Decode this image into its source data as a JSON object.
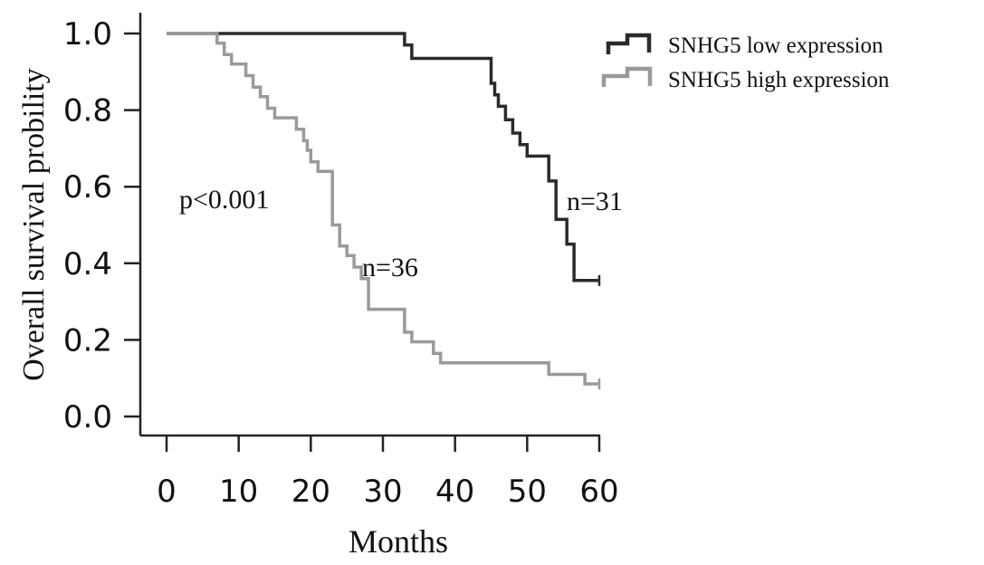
{
  "chart_data": {
    "type": "line",
    "xlabel": "Months",
    "ylabel": "Overall survival probility",
    "xlim": [
      0,
      60
    ],
    "ylim": [
      0,
      1
    ],
    "x_ticks": [
      "0",
      "10",
      "20",
      "30",
      "40",
      "50",
      "60"
    ],
    "y_ticks": [
      "0.0",
      "0.2",
      "0.4",
      "0.6",
      "0.8",
      "1.0"
    ],
    "grid": false,
    "legend_position": "top-right",
    "annotations": {
      "p_value": "p<0.001",
      "n_low": "n=31",
      "n_high": "n=36"
    },
    "series": [
      {
        "name": "SNHG5 low expression",
        "color": "#2b2b2b",
        "step_points": [
          [
            0,
            1.0
          ],
          [
            33,
            1.0
          ],
          [
            33,
            0.97
          ],
          [
            34,
            0.97
          ],
          [
            34,
            0.935
          ],
          [
            45,
            0.935
          ],
          [
            45,
            0.87
          ],
          [
            45.5,
            0.87
          ],
          [
            45.5,
            0.84
          ],
          [
            46,
            0.84
          ],
          [
            46,
            0.81
          ],
          [
            47,
            0.81
          ],
          [
            47,
            0.775
          ],
          [
            48,
            0.775
          ],
          [
            48,
            0.74
          ],
          [
            49,
            0.74
          ],
          [
            49,
            0.71
          ],
          [
            50,
            0.71
          ],
          [
            50,
            0.68
          ],
          [
            53,
            0.68
          ],
          [
            53,
            0.615
          ],
          [
            54,
            0.615
          ],
          [
            54,
            0.515
          ],
          [
            55.5,
            0.515
          ],
          [
            55.5,
            0.45
          ],
          [
            56.5,
            0.45
          ],
          [
            56.5,
            0.355
          ],
          [
            60,
            0.355
          ]
        ],
        "censor": [
          [
            60,
            0.355
          ]
        ]
      },
      {
        "name": "SNHG5 high expression",
        "color": "#9a9a9a",
        "step_points": [
          [
            0,
            1.0
          ],
          [
            7,
            1.0
          ],
          [
            7,
            0.975
          ],
          [
            8,
            0.975
          ],
          [
            8,
            0.945
          ],
          [
            9,
            0.945
          ],
          [
            9,
            0.92
          ],
          [
            11,
            0.92
          ],
          [
            11,
            0.89
          ],
          [
            12,
            0.89
          ],
          [
            12,
            0.86
          ],
          [
            13,
            0.86
          ],
          [
            13,
            0.835
          ],
          [
            14,
            0.835
          ],
          [
            14,
            0.805
          ],
          [
            15,
            0.805
          ],
          [
            15,
            0.78
          ],
          [
            18,
            0.78
          ],
          [
            18,
            0.75
          ],
          [
            19,
            0.75
          ],
          [
            19,
            0.72
          ],
          [
            19.5,
            0.72
          ],
          [
            19.5,
            0.695
          ],
          [
            20,
            0.695
          ],
          [
            20,
            0.665
          ],
          [
            21,
            0.665
          ],
          [
            21,
            0.64
          ],
          [
            23,
            0.64
          ],
          [
            23,
            0.5
          ],
          [
            24,
            0.5
          ],
          [
            24,
            0.445
          ],
          [
            25,
            0.445
          ],
          [
            25,
            0.42
          ],
          [
            26,
            0.42
          ],
          [
            26,
            0.39
          ],
          [
            27,
            0.39
          ],
          [
            27,
            0.36
          ],
          [
            28,
            0.36
          ],
          [
            28,
            0.28
          ],
          [
            33,
            0.28
          ],
          [
            33,
            0.22
          ],
          [
            34,
            0.22
          ],
          [
            34,
            0.195
          ],
          [
            37,
            0.195
          ],
          [
            37,
            0.165
          ],
          [
            38,
            0.165
          ],
          [
            38,
            0.14
          ],
          [
            53,
            0.14
          ],
          [
            53,
            0.11
          ],
          [
            58,
            0.11
          ],
          [
            58,
            0.085
          ],
          [
            60,
            0.085
          ]
        ],
        "censor": [
          [
            60,
            0.085
          ]
        ]
      }
    ]
  }
}
